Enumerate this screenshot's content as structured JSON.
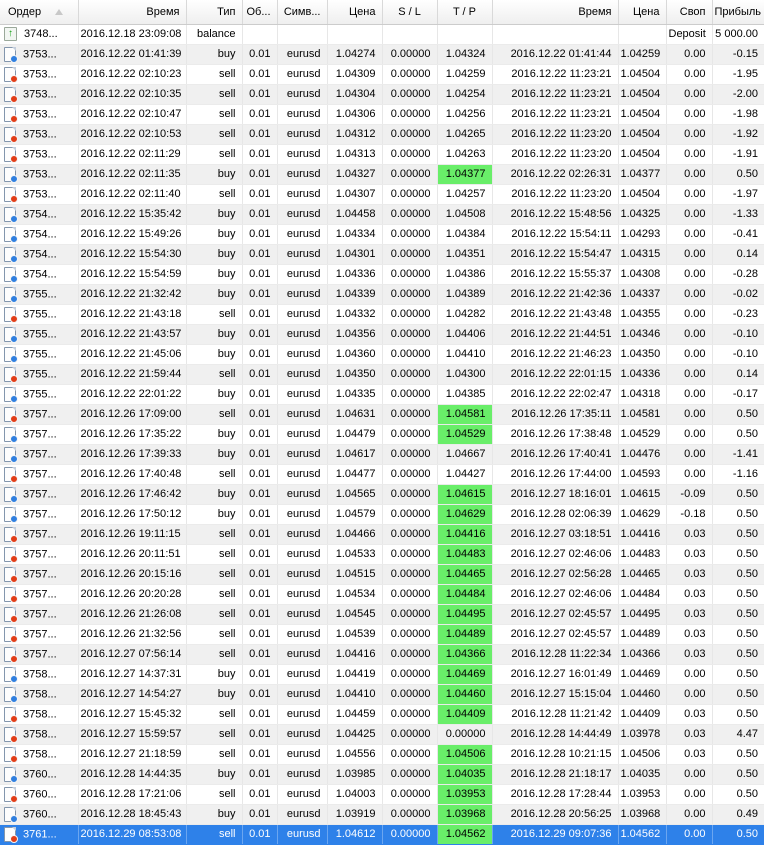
{
  "header": {
    "columns": [
      {
        "key": "order",
        "label": "Ордер",
        "sort": "asc"
      },
      {
        "key": "open_time",
        "label": "Время"
      },
      {
        "key": "type",
        "label": "Тип"
      },
      {
        "key": "volume",
        "label": "Об..."
      },
      {
        "key": "symbol",
        "label": "Симв..."
      },
      {
        "key": "open_price",
        "label": "Цена"
      },
      {
        "key": "sl",
        "label": "S / L"
      },
      {
        "key": "tp",
        "label": "T / P"
      },
      {
        "key": "close_time",
        "label": "Время"
      },
      {
        "key": "close_price",
        "label": "Цена"
      },
      {
        "key": "swap",
        "label": "Своп"
      },
      {
        "key": "profit",
        "label": "Прибыль"
      }
    ]
  },
  "colors": {
    "selected_row_bg": "#2e81e9",
    "tp_hit_cell_bg": "#69ee69",
    "alt_row_bg": "#f0f0f0",
    "buy_dot": "#2f7fe0",
    "sell_dot": "#e23d18",
    "balance_arrow": "#14a014"
  },
  "rows": [
    {
      "order": "3748...",
      "open_time": "2016.12.18 23:09:08",
      "type": "balance",
      "volume": "",
      "symbol": "",
      "open_price": "",
      "sl": "",
      "tp": "",
      "close_time": "",
      "close_price": "",
      "swap": "Deposit",
      "profit": "5 000.00",
      "icon": "balance",
      "tp_hit": false,
      "selected": false
    },
    {
      "order": "3753...",
      "open_time": "2016.12.22 01:41:39",
      "type": "buy",
      "volume": "0.01",
      "symbol": "eurusd",
      "open_price": "1.04274",
      "sl": "0.00000",
      "tp": "1.04324",
      "close_time": "2016.12.22 01:41:44",
      "close_price": "1.04259",
      "swap": "0.00",
      "profit": "-0.15",
      "icon": "buy",
      "tp_hit": false,
      "selected": false
    },
    {
      "order": "3753...",
      "open_time": "2016.12.22 02:10:23",
      "type": "sell",
      "volume": "0.01",
      "symbol": "eurusd",
      "open_price": "1.04309",
      "sl": "0.00000",
      "tp": "1.04259",
      "close_time": "2016.12.22 11:23:21",
      "close_price": "1.04504",
      "swap": "0.00",
      "profit": "-1.95",
      "icon": "sell",
      "tp_hit": false,
      "selected": false
    },
    {
      "order": "3753...",
      "open_time": "2016.12.22 02:10:35",
      "type": "sell",
      "volume": "0.01",
      "symbol": "eurusd",
      "open_price": "1.04304",
      "sl": "0.00000",
      "tp": "1.04254",
      "close_time": "2016.12.22 11:23:21",
      "close_price": "1.04504",
      "swap": "0.00",
      "profit": "-2.00",
      "icon": "sell",
      "tp_hit": false,
      "selected": false
    },
    {
      "order": "3753...",
      "open_time": "2016.12.22 02:10:47",
      "type": "sell",
      "volume": "0.01",
      "symbol": "eurusd",
      "open_price": "1.04306",
      "sl": "0.00000",
      "tp": "1.04256",
      "close_time": "2016.12.22 11:23:21",
      "close_price": "1.04504",
      "swap": "0.00",
      "profit": "-1.98",
      "icon": "sell",
      "tp_hit": false,
      "selected": false
    },
    {
      "order": "3753...",
      "open_time": "2016.12.22 02:10:53",
      "type": "sell",
      "volume": "0.01",
      "symbol": "eurusd",
      "open_price": "1.04312",
      "sl": "0.00000",
      "tp": "1.04265",
      "close_time": "2016.12.22 11:23:20",
      "close_price": "1.04504",
      "swap": "0.00",
      "profit": "-1.92",
      "icon": "sell",
      "tp_hit": false,
      "selected": false
    },
    {
      "order": "3753...",
      "open_time": "2016.12.22 02:11:29",
      "type": "sell",
      "volume": "0.01",
      "symbol": "eurusd",
      "open_price": "1.04313",
      "sl": "0.00000",
      "tp": "1.04263",
      "close_time": "2016.12.22 11:23:20",
      "close_price": "1.04504",
      "swap": "0.00",
      "profit": "-1.91",
      "icon": "sell",
      "tp_hit": false,
      "selected": false
    },
    {
      "order": "3753...",
      "open_time": "2016.12.22 02:11:35",
      "type": "buy",
      "volume": "0.01",
      "symbol": "eurusd",
      "open_price": "1.04327",
      "sl": "0.00000",
      "tp": "1.04377",
      "close_time": "2016.12.22 02:26:31",
      "close_price": "1.04377",
      "swap": "0.00",
      "profit": "0.50",
      "icon": "buy",
      "tp_hit": true,
      "selected": false
    },
    {
      "order": "3753...",
      "open_time": "2016.12.22 02:11:40",
      "type": "sell",
      "volume": "0.01",
      "symbol": "eurusd",
      "open_price": "1.04307",
      "sl": "0.00000",
      "tp": "1.04257",
      "close_time": "2016.12.22 11:23:20",
      "close_price": "1.04504",
      "swap": "0.00",
      "profit": "-1.97",
      "icon": "sell",
      "tp_hit": false,
      "selected": false
    },
    {
      "order": "3754...",
      "open_time": "2016.12.22 15:35:42",
      "type": "buy",
      "volume": "0.01",
      "symbol": "eurusd",
      "open_price": "1.04458",
      "sl": "0.00000",
      "tp": "1.04508",
      "close_time": "2016.12.22 15:48:56",
      "close_price": "1.04325",
      "swap": "0.00",
      "profit": "-1.33",
      "icon": "buy",
      "tp_hit": false,
      "selected": false
    },
    {
      "order": "3754...",
      "open_time": "2016.12.22 15:49:26",
      "type": "buy",
      "volume": "0.01",
      "symbol": "eurusd",
      "open_price": "1.04334",
      "sl": "0.00000",
      "tp": "1.04384",
      "close_time": "2016.12.22 15:54:11",
      "close_price": "1.04293",
      "swap": "0.00",
      "profit": "-0.41",
      "icon": "buy",
      "tp_hit": false,
      "selected": false
    },
    {
      "order": "3754...",
      "open_time": "2016.12.22 15:54:30",
      "type": "buy",
      "volume": "0.01",
      "symbol": "eurusd",
      "open_price": "1.04301",
      "sl": "0.00000",
      "tp": "1.04351",
      "close_time": "2016.12.22 15:54:47",
      "close_price": "1.04315",
      "swap": "0.00",
      "profit": "0.14",
      "icon": "buy",
      "tp_hit": false,
      "selected": false
    },
    {
      "order": "3754...",
      "open_time": "2016.12.22 15:54:59",
      "type": "buy",
      "volume": "0.01",
      "symbol": "eurusd",
      "open_price": "1.04336",
      "sl": "0.00000",
      "tp": "1.04386",
      "close_time": "2016.12.22 15:55:37",
      "close_price": "1.04308",
      "swap": "0.00",
      "profit": "-0.28",
      "icon": "buy",
      "tp_hit": false,
      "selected": false
    },
    {
      "order": "3755...",
      "open_time": "2016.12.22 21:32:42",
      "type": "buy",
      "volume": "0.01",
      "symbol": "eurusd",
      "open_price": "1.04339",
      "sl": "0.00000",
      "tp": "1.04389",
      "close_time": "2016.12.22 21:42:36",
      "close_price": "1.04337",
      "swap": "0.00",
      "profit": "-0.02",
      "icon": "buy",
      "tp_hit": false,
      "selected": false
    },
    {
      "order": "3755...",
      "open_time": "2016.12.22 21:43:18",
      "type": "sell",
      "volume": "0.01",
      "symbol": "eurusd",
      "open_price": "1.04332",
      "sl": "0.00000",
      "tp": "1.04282",
      "close_time": "2016.12.22 21:43:48",
      "close_price": "1.04355",
      "swap": "0.00",
      "profit": "-0.23",
      "icon": "sell",
      "tp_hit": false,
      "selected": false
    },
    {
      "order": "3755...",
      "open_time": "2016.12.22 21:43:57",
      "type": "buy",
      "volume": "0.01",
      "symbol": "eurusd",
      "open_price": "1.04356",
      "sl": "0.00000",
      "tp": "1.04406",
      "close_time": "2016.12.22 21:44:51",
      "close_price": "1.04346",
      "swap": "0.00",
      "profit": "-0.10",
      "icon": "buy",
      "tp_hit": false,
      "selected": false
    },
    {
      "order": "3755...",
      "open_time": "2016.12.22 21:45:06",
      "type": "buy",
      "volume": "0.01",
      "symbol": "eurusd",
      "open_price": "1.04360",
      "sl": "0.00000",
      "tp": "1.04410",
      "close_time": "2016.12.22 21:46:23",
      "close_price": "1.04350",
      "swap": "0.00",
      "profit": "-0.10",
      "icon": "buy",
      "tp_hit": false,
      "selected": false
    },
    {
      "order": "3755...",
      "open_time": "2016.12.22 21:59:44",
      "type": "sell",
      "volume": "0.01",
      "symbol": "eurusd",
      "open_price": "1.04350",
      "sl": "0.00000",
      "tp": "1.04300",
      "close_time": "2016.12.22 22:01:15",
      "close_price": "1.04336",
      "swap": "0.00",
      "profit": "0.14",
      "icon": "sell",
      "tp_hit": false,
      "selected": false
    },
    {
      "order": "3755...",
      "open_time": "2016.12.22 22:01:22",
      "type": "buy",
      "volume": "0.01",
      "symbol": "eurusd",
      "open_price": "1.04335",
      "sl": "0.00000",
      "tp": "1.04385",
      "close_time": "2016.12.22 22:02:47",
      "close_price": "1.04318",
      "swap": "0.00",
      "profit": "-0.17",
      "icon": "buy",
      "tp_hit": false,
      "selected": false
    },
    {
      "order": "3757...",
      "open_time": "2016.12.26 17:09:00",
      "type": "sell",
      "volume": "0.01",
      "symbol": "eurusd",
      "open_price": "1.04631",
      "sl": "0.00000",
      "tp": "1.04581",
      "close_time": "2016.12.26 17:35:11",
      "close_price": "1.04581",
      "swap": "0.00",
      "profit": "0.50",
      "icon": "sell",
      "tp_hit": true,
      "selected": false
    },
    {
      "order": "3757...",
      "open_time": "2016.12.26 17:35:22",
      "type": "buy",
      "volume": "0.01",
      "symbol": "eurusd",
      "open_price": "1.04479",
      "sl": "0.00000",
      "tp": "1.04529",
      "close_time": "2016.12.26 17:38:48",
      "close_price": "1.04529",
      "swap": "0.00",
      "profit": "0.50",
      "icon": "buy",
      "tp_hit": true,
      "selected": false
    },
    {
      "order": "3757...",
      "open_time": "2016.12.26 17:39:33",
      "type": "buy",
      "volume": "0.01",
      "symbol": "eurusd",
      "open_price": "1.04617",
      "sl": "0.00000",
      "tp": "1.04667",
      "close_time": "2016.12.26 17:40:41",
      "close_price": "1.04476",
      "swap": "0.00",
      "profit": "-1.41",
      "icon": "buy",
      "tp_hit": false,
      "selected": false
    },
    {
      "order": "3757...",
      "open_time": "2016.12.26 17:40:48",
      "type": "sell",
      "volume": "0.01",
      "symbol": "eurusd",
      "open_price": "1.04477",
      "sl": "0.00000",
      "tp": "1.04427",
      "close_time": "2016.12.26 17:44:00",
      "close_price": "1.04593",
      "swap": "0.00",
      "profit": "-1.16",
      "icon": "sell",
      "tp_hit": false,
      "selected": false
    },
    {
      "order": "3757...",
      "open_time": "2016.12.26 17:46:42",
      "type": "buy",
      "volume": "0.01",
      "symbol": "eurusd",
      "open_price": "1.04565",
      "sl": "0.00000",
      "tp": "1.04615",
      "close_time": "2016.12.27 18:16:01",
      "close_price": "1.04615",
      "swap": "-0.09",
      "profit": "0.50",
      "icon": "buy",
      "tp_hit": true,
      "selected": false
    },
    {
      "order": "3757...",
      "open_time": "2016.12.26 17:50:12",
      "type": "buy",
      "volume": "0.01",
      "symbol": "eurusd",
      "open_price": "1.04579",
      "sl": "0.00000",
      "tp": "1.04629",
      "close_time": "2016.12.28 02:06:39",
      "close_price": "1.04629",
      "swap": "-0.18",
      "profit": "0.50",
      "icon": "buy",
      "tp_hit": true,
      "selected": false
    },
    {
      "order": "3757...",
      "open_time": "2016.12.26 19:11:15",
      "type": "sell",
      "volume": "0.01",
      "symbol": "eurusd",
      "open_price": "1.04466",
      "sl": "0.00000",
      "tp": "1.04416",
      "close_time": "2016.12.27 03:18:51",
      "close_price": "1.04416",
      "swap": "0.03",
      "profit": "0.50",
      "icon": "sell",
      "tp_hit": true,
      "selected": false
    },
    {
      "order": "3757...",
      "open_time": "2016.12.26 20:11:51",
      "type": "sell",
      "volume": "0.01",
      "symbol": "eurusd",
      "open_price": "1.04533",
      "sl": "0.00000",
      "tp": "1.04483",
      "close_time": "2016.12.27 02:46:06",
      "close_price": "1.04483",
      "swap": "0.03",
      "profit": "0.50",
      "icon": "sell",
      "tp_hit": true,
      "selected": false
    },
    {
      "order": "3757...",
      "open_time": "2016.12.26 20:15:16",
      "type": "sell",
      "volume": "0.01",
      "symbol": "eurusd",
      "open_price": "1.04515",
      "sl": "0.00000",
      "tp": "1.04465",
      "close_time": "2016.12.27 02:56:28",
      "close_price": "1.04465",
      "swap": "0.03",
      "profit": "0.50",
      "icon": "sell",
      "tp_hit": true,
      "selected": false
    },
    {
      "order": "3757...",
      "open_time": "2016.12.26 20:20:28",
      "type": "sell",
      "volume": "0.01",
      "symbol": "eurusd",
      "open_price": "1.04534",
      "sl": "0.00000",
      "tp": "1.04484",
      "close_time": "2016.12.27 02:46:06",
      "close_price": "1.04484",
      "swap": "0.03",
      "profit": "0.50",
      "icon": "sell",
      "tp_hit": true,
      "selected": false
    },
    {
      "order": "3757...",
      "open_time": "2016.12.26 21:26:08",
      "type": "sell",
      "volume": "0.01",
      "symbol": "eurusd",
      "open_price": "1.04545",
      "sl": "0.00000",
      "tp": "1.04495",
      "close_time": "2016.12.27 02:45:57",
      "close_price": "1.04495",
      "swap": "0.03",
      "profit": "0.50",
      "icon": "sell",
      "tp_hit": true,
      "selected": false
    },
    {
      "order": "3757...",
      "open_time": "2016.12.26 21:32:56",
      "type": "sell",
      "volume": "0.01",
      "symbol": "eurusd",
      "open_price": "1.04539",
      "sl": "0.00000",
      "tp": "1.04489",
      "close_time": "2016.12.27 02:45:57",
      "close_price": "1.04489",
      "swap": "0.03",
      "profit": "0.50",
      "icon": "sell",
      "tp_hit": true,
      "selected": false
    },
    {
      "order": "3757...",
      "open_time": "2016.12.27 07:56:14",
      "type": "sell",
      "volume": "0.01",
      "symbol": "eurusd",
      "open_price": "1.04416",
      "sl": "0.00000",
      "tp": "1.04366",
      "close_time": "2016.12.28 11:22:34",
      "close_price": "1.04366",
      "swap": "0.03",
      "profit": "0.50",
      "icon": "sell",
      "tp_hit": true,
      "selected": false
    },
    {
      "order": "3758...",
      "open_time": "2016.12.27 14:37:31",
      "type": "buy",
      "volume": "0.01",
      "symbol": "eurusd",
      "open_price": "1.04419",
      "sl": "0.00000",
      "tp": "1.04469",
      "close_time": "2016.12.27 16:01:49",
      "close_price": "1.04469",
      "swap": "0.00",
      "profit": "0.50",
      "icon": "buy",
      "tp_hit": true,
      "selected": false
    },
    {
      "order": "3758...",
      "open_time": "2016.12.27 14:54:27",
      "type": "buy",
      "volume": "0.01",
      "symbol": "eurusd",
      "open_price": "1.04410",
      "sl": "0.00000",
      "tp": "1.04460",
      "close_time": "2016.12.27 15:15:04",
      "close_price": "1.04460",
      "swap": "0.00",
      "profit": "0.50",
      "icon": "buy",
      "tp_hit": true,
      "selected": false
    },
    {
      "order": "3758...",
      "open_time": "2016.12.27 15:45:32",
      "type": "sell",
      "volume": "0.01",
      "symbol": "eurusd",
      "open_price": "1.04459",
      "sl": "0.00000",
      "tp": "1.04409",
      "close_time": "2016.12.28 11:21:42",
      "close_price": "1.04409",
      "swap": "0.03",
      "profit": "0.50",
      "icon": "sell",
      "tp_hit": true,
      "selected": false
    },
    {
      "order": "3758...",
      "open_time": "2016.12.27 15:59:57",
      "type": "sell",
      "volume": "0.01",
      "symbol": "eurusd",
      "open_price": "1.04425",
      "sl": "0.00000",
      "tp": "0.00000",
      "close_time": "2016.12.28 14:44:49",
      "close_price": "1.03978",
      "swap": "0.03",
      "profit": "4.47",
      "icon": "sell",
      "tp_hit": false,
      "selected": false
    },
    {
      "order": "3758...",
      "open_time": "2016.12.27 21:18:59",
      "type": "sell",
      "volume": "0.01",
      "symbol": "eurusd",
      "open_price": "1.04556",
      "sl": "0.00000",
      "tp": "1.04506",
      "close_time": "2016.12.28 10:21:15",
      "close_price": "1.04506",
      "swap": "0.03",
      "profit": "0.50",
      "icon": "sell",
      "tp_hit": true,
      "selected": false
    },
    {
      "order": "3760...",
      "open_time": "2016.12.28 14:44:35",
      "type": "buy",
      "volume": "0.01",
      "symbol": "eurusd",
      "open_price": "1.03985",
      "sl": "0.00000",
      "tp": "1.04035",
      "close_time": "2016.12.28 21:18:17",
      "close_price": "1.04035",
      "swap": "0.00",
      "profit": "0.50",
      "icon": "buy",
      "tp_hit": true,
      "selected": false
    },
    {
      "order": "3760...",
      "open_time": "2016.12.28 17:21:06",
      "type": "sell",
      "volume": "0.01",
      "symbol": "eurusd",
      "open_price": "1.04003",
      "sl": "0.00000",
      "tp": "1.03953",
      "close_time": "2016.12.28 17:28:44",
      "close_price": "1.03953",
      "swap": "0.00",
      "profit": "0.50",
      "icon": "sell",
      "tp_hit": true,
      "selected": false
    },
    {
      "order": "3760...",
      "open_time": "2016.12.28 18:45:43",
      "type": "buy",
      "volume": "0.01",
      "symbol": "eurusd",
      "open_price": "1.03919",
      "sl": "0.00000",
      "tp": "1.03968",
      "close_time": "2016.12.28 20:56:25",
      "close_price": "1.03968",
      "swap": "0.00",
      "profit": "0.49",
      "icon": "buy",
      "tp_hit": true,
      "selected": false
    },
    {
      "order": "3761...",
      "open_time": "2016.12.29 08:53:08",
      "type": "sell",
      "volume": "0.01",
      "symbol": "eurusd",
      "open_price": "1.04612",
      "sl": "0.00000",
      "tp": "1.04562",
      "close_time": "2016.12.29 09:07:36",
      "close_price": "1.04562",
      "swap": "0.00",
      "profit": "0.50",
      "icon": "sell",
      "tp_hit": true,
      "selected": true
    }
  ]
}
